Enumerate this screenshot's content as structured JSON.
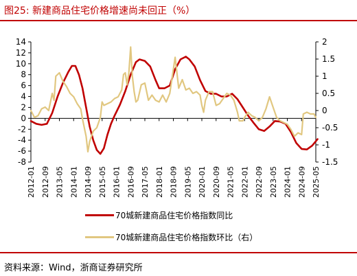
{
  "figure": {
    "title": "图25:   新建商品住宅价格增速尚未回正（%）",
    "source": "资料来源：Wind，浙商证券研究所"
  },
  "colors": {
    "accent": "#c00000",
    "series1": "#c00000",
    "series2": "#e1c780"
  },
  "chart_data": {
    "type": "line",
    "x_ticks": [
      "2012-01",
      "2012-09",
      "2013-05",
      "2014-01",
      "2014-09",
      "2015-05",
      "2016-01",
      "2016-09",
      "2017-05",
      "2018-01",
      "2018-09",
      "2019-05",
      "2020-01",
      "2020-09",
      "2021-05",
      "2022-01",
      "2022-09",
      "2023-05",
      "2024-01",
      "2024-09",
      "2025-05"
    ],
    "y_left": {
      "ticks": [
        14,
        12,
        10,
        8,
        6,
        4,
        2,
        0,
        -2,
        -4,
        -6,
        -8
      ],
      "range": [
        -8,
        14
      ]
    },
    "y_right": {
      "ticks": [
        "2",
        "1.5",
        "1",
        "0.5",
        "0",
        "-0.5",
        "-1",
        "-1.5"
      ],
      "range": [
        -1.5,
        2
      ]
    },
    "grid": false,
    "legend_position": "bottom",
    "series": [
      {
        "name": "70城新建商品住宅价格指数同比",
        "axis": "left",
        "color": "#c00000",
        "points": [
          [
            "2012-01",
            -0.5
          ],
          [
            "2012-04",
            -1.0
          ],
          [
            "2012-07",
            -1.2
          ],
          [
            "2012-10",
            -1.0
          ],
          [
            "2013-01",
            1.0
          ],
          [
            "2013-04",
            4.0
          ],
          [
            "2013-07",
            6.5
          ],
          [
            "2013-10",
            8.5
          ],
          [
            "2013-12",
            9.6
          ],
          [
            "2014-02",
            9.6
          ],
          [
            "2014-04",
            8.0
          ],
          [
            "2014-06",
            5.5
          ],
          [
            "2014-08",
            2.0
          ],
          [
            "2014-10",
            -1.5
          ],
          [
            "2014-12",
            -4.0
          ],
          [
            "2015-02",
            -5.8
          ],
          [
            "2015-04",
            -6.5
          ],
          [
            "2015-06",
            -5.5
          ],
          [
            "2015-08",
            -3.0
          ],
          [
            "2015-10",
            -1.0
          ],
          [
            "2015-12",
            0.5
          ],
          [
            "2016-03",
            2.5
          ],
          [
            "2016-06",
            5.0
          ],
          [
            "2016-09",
            8.0
          ],
          [
            "2016-12",
            10.3
          ],
          [
            "2017-02",
            10.8
          ],
          [
            "2017-05",
            10.5
          ],
          [
            "2017-08",
            9.5
          ],
          [
            "2017-11",
            7.0
          ],
          [
            "2018-01",
            5.5
          ],
          [
            "2018-04",
            5.5
          ],
          [
            "2018-07",
            6.0
          ],
          [
            "2018-10",
            9.0
          ],
          [
            "2019-01",
            10.8
          ],
          [
            "2019-04",
            11.3
          ],
          [
            "2019-06",
            10.8
          ],
          [
            "2019-09",
            9.5
          ],
          [
            "2019-12",
            7.0
          ],
          [
            "2020-03",
            5.0
          ],
          [
            "2020-06",
            4.5
          ],
          [
            "2020-09",
            4.5
          ],
          [
            "2020-12",
            4.0
          ],
          [
            "2021-03",
            4.0
          ],
          [
            "2021-06",
            4.5
          ],
          [
            "2021-09",
            3.5
          ],
          [
            "2021-12",
            2.0
          ],
          [
            "2022-03",
            0.5
          ],
          [
            "2022-06",
            -0.8
          ],
          [
            "2022-09",
            -2.0
          ],
          [
            "2022-12",
            -2.3
          ],
          [
            "2023-03",
            -1.5
          ],
          [
            "2023-06",
            -0.5
          ],
          [
            "2023-09",
            -0.6
          ],
          [
            "2023-12",
            -1.0
          ],
          [
            "2024-03",
            -2.5
          ],
          [
            "2024-06",
            -4.5
          ],
          [
            "2024-09",
            -5.6
          ],
          [
            "2024-12",
            -5.7
          ],
          [
            "2025-03",
            -5.0
          ],
          [
            "2025-06",
            -3.8
          ]
        ]
      },
      {
        "name": "70城新建商品住宅价格指数环比（右）",
        "axis": "right",
        "color": "#e1c780",
        "points": [
          [
            "2012-01",
            0.0
          ],
          [
            "2012-03",
            -0.2
          ],
          [
            "2012-05",
            -0.15
          ],
          [
            "2012-07",
            0.05
          ],
          [
            "2012-09",
            0.1
          ],
          [
            "2012-11",
            0.0
          ],
          [
            "2013-01",
            0.5
          ],
          [
            "2013-02",
            0.3
          ],
          [
            "2013-03",
            1.0
          ],
          [
            "2013-05",
            1.1
          ],
          [
            "2013-07",
            0.85
          ],
          [
            "2013-09",
            0.7
          ],
          [
            "2013-11",
            0.5
          ],
          [
            "2014-01",
            0.4
          ],
          [
            "2014-03",
            0.2
          ],
          [
            "2014-05",
            0.05
          ],
          [
            "2014-06",
            -0.25
          ],
          [
            "2014-08",
            -0.75
          ],
          [
            "2014-09",
            -1.2
          ],
          [
            "2014-10",
            -0.9
          ],
          [
            "2014-12",
            -0.6
          ],
          [
            "2015-02",
            -0.5
          ],
          [
            "2015-04",
            -0.2
          ],
          [
            "2015-05",
            0.25
          ],
          [
            "2015-06",
            0.15
          ],
          [
            "2015-08",
            0.2
          ],
          [
            "2015-10",
            0.25
          ],
          [
            "2015-12",
            0.35
          ],
          [
            "2016-02",
            0.4
          ],
          [
            "2016-04",
            0.6
          ],
          [
            "2016-05",
            1.05
          ],
          [
            "2016-06",
            1.1
          ],
          [
            "2016-07",
            0.75
          ],
          [
            "2016-08",
            1.1
          ],
          [
            "2016-09",
            1.85
          ],
          [
            "2016-10",
            1.0
          ],
          [
            "2016-11",
            0.55
          ],
          [
            "2016-12",
            0.25
          ],
          [
            "2017-01",
            0.3
          ],
          [
            "2017-03",
            0.75
          ],
          [
            "2017-05",
            0.8
          ],
          [
            "2017-07",
            0.3
          ],
          [
            "2017-09",
            0.45
          ],
          [
            "2017-11",
            0.3
          ],
          [
            "2018-01",
            0.25
          ],
          [
            "2018-03",
            0.45
          ],
          [
            "2018-05",
            0.25
          ],
          [
            "2018-07",
            0.5
          ],
          [
            "2018-09",
            1.2
          ],
          [
            "2018-10",
            1.55
          ],
          [
            "2018-12",
            0.65
          ],
          [
            "2019-02",
            0.9
          ],
          [
            "2019-04",
            0.6
          ],
          [
            "2019-06",
            0.65
          ],
          [
            "2019-08",
            0.5
          ],
          [
            "2019-10",
            0.55
          ],
          [
            "2019-12",
            0.45
          ],
          [
            "2020-01",
            0.15
          ],
          [
            "2020-02",
            -0.05
          ],
          [
            "2020-03",
            0.3
          ],
          [
            "2020-05",
            0.55
          ],
          [
            "2020-07",
            0.55
          ],
          [
            "2020-09",
            0.15
          ],
          [
            "2020-11",
            0.2
          ],
          [
            "2021-01",
            0.35
          ],
          [
            "2021-03",
            0.5
          ],
          [
            "2021-05",
            0.45
          ],
          [
            "2021-07",
            0.3
          ],
          [
            "2021-09",
            -0.05
          ],
          [
            "2021-10",
            -0.3
          ],
          [
            "2021-12",
            -0.3
          ],
          [
            "2022-01",
            -0.2
          ],
          [
            "2022-03",
            -0.05
          ],
          [
            "2022-05",
            -0.15
          ],
          [
            "2022-07",
            -0.2
          ],
          [
            "2022-09",
            -0.3
          ],
          [
            "2022-11",
            -0.2
          ],
          [
            "2023-01",
            0.05
          ],
          [
            "2023-03",
            0.4
          ],
          [
            "2023-05",
            0.1
          ],
          [
            "2023-07",
            -0.2
          ],
          [
            "2023-09",
            -0.3
          ],
          [
            "2023-11",
            -0.35
          ],
          [
            "2024-01",
            -0.4
          ],
          [
            "2024-03",
            -0.55
          ],
          [
            "2024-05",
            -0.75
          ],
          [
            "2024-07",
            -0.65
          ],
          [
            "2024-09",
            -0.7
          ],
          [
            "2024-10",
            -0.1
          ],
          [
            "2024-12",
            -0.05
          ],
          [
            "2025-02",
            -0.1
          ],
          [
            "2025-04",
            -0.1
          ],
          [
            "2025-05",
            -0.2
          ]
        ]
      }
    ]
  }
}
